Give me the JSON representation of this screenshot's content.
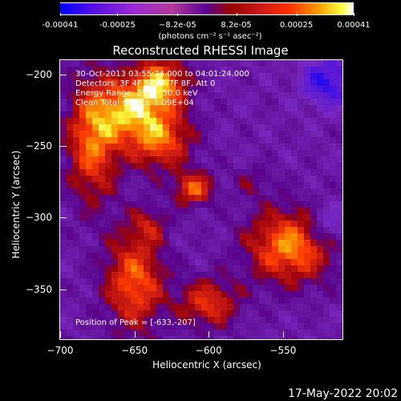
{
  "chart_data": {
    "type": "heatmap",
    "title": "Reconstructed RHESSI Image",
    "xlabel": "Heliocentric X (arcsec)",
    "ylabel": "Heliocentric Y (arcsec)",
    "xlim": [
      -700,
      -510
    ],
    "ylim": [
      -385,
      -190
    ],
    "x_ticks": [
      -700,
      -650,
      -600,
      -550
    ],
    "y_ticks": [
      -200,
      -250,
      -300,
      -350
    ],
    "x_tick_labels": [
      "−700",
      "−650",
      "−600",
      "−550"
    ],
    "y_tick_labels": [
      "−200",
      "−250",
      "−300",
      "−350"
    ],
    "colorbar": {
      "ticks": [
        -0.00041,
        -0.00025,
        -8.2e-05,
        8.2e-05,
        0.00025,
        0.00041
      ],
      "tick_labels": [
        "-0.00041",
        "-0.00025",
        "−8.2e-05",
        "8.2e-05",
        "0.00025",
        "0.00041"
      ],
      "units": "(photons cm⁻² s⁻¹ asec⁻²)",
      "range": [
        -0.00041,
        0.00041
      ]
    },
    "info_lines": [
      "30-Oct-2013 03:55:24.000 to 04:01:24.000",
      "Detectors: 3F 4F 5F 6F 7F 8F, Att 0",
      "Energy Range: 25.0 - 50.0 keV",
      "Clean     Total counts: 1.09E+04"
    ],
    "peak_text": "Position of Peak = [-633,-207]",
    "sources": [
      {
        "x": -678,
        "y": -245,
        "sigma_x": 12,
        "sigma_y": 30,
        "amp": 0.00036
      },
      {
        "x": -655,
        "y": -225,
        "sigma_x": 14,
        "sigma_y": 15,
        "amp": 0.00033
      },
      {
        "x": -633,
        "y": -207,
        "sigma_x": 13,
        "sigma_y": 13,
        "amp": 0.00041
      },
      {
        "x": -633,
        "y": -245,
        "sigma_x": 15,
        "sigma_y": 15,
        "amp": 0.00035
      },
      {
        "x": -610,
        "y": -280,
        "sigma_x": 9,
        "sigma_y": 8,
        "amp": 0.00033
      },
      {
        "x": -545,
        "y": -320,
        "sigma_x": 20,
        "sigma_y": 18,
        "amp": 0.00039
      },
      {
        "x": -650,
        "y": -345,
        "sigma_x": 14,
        "sigma_y": 24,
        "amp": 0.00034
      },
      {
        "x": -600,
        "y": -360,
        "sigma_x": 14,
        "sigma_y": 12,
        "amp": 0.00028
      },
      {
        "x": -640,
        "y": -305,
        "sigma_x": 9,
        "sigma_y": 9,
        "amp": 0.00016
      },
      {
        "x": -570,
        "y": -275,
        "sigma_x": 10,
        "sigma_y": 8,
        "amp": 0.0001
      }
    ],
    "negative_regions": [
      {
        "x": -520,
        "y": -205,
        "sigma_x": 12,
        "sigma_y": 12,
        "amp": -0.00025
      },
      {
        "x": -520,
        "y": -305,
        "sigma_x": 10,
        "sigma_y": 10,
        "amp": -0.00018
      }
    ]
  },
  "timestamp": "17-May-2022 20:02",
  "colors": {
    "background": "#000000",
    "foreground": "#ffffff"
  }
}
